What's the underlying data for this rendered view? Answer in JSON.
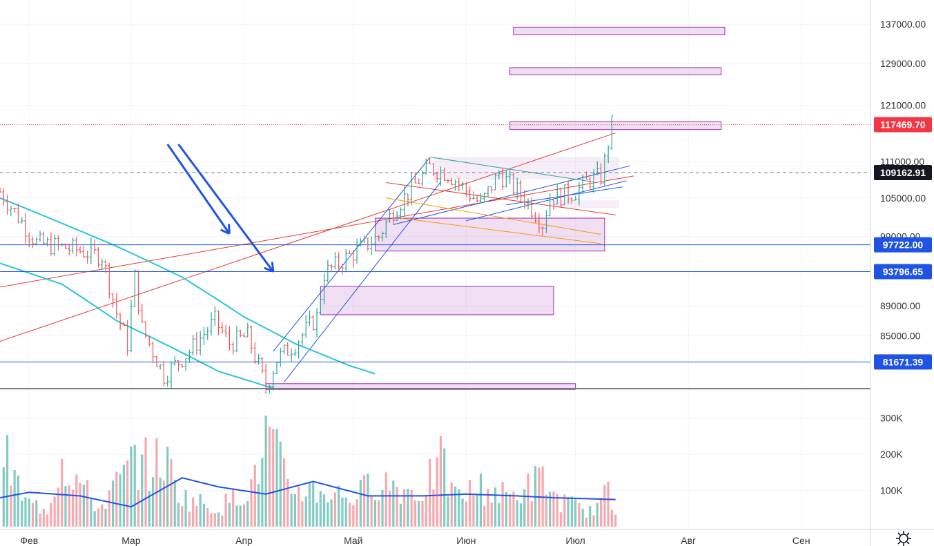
{
  "chart_data": [
    {
      "type": "candlestick",
      "subtype": "ohlc-bars",
      "yaxis": {
        "tick_labels": [
          "137000.00",
          "129000.00",
          "121000.00",
          "111000.00",
          "105000.00",
          "99000.00",
          "89000.00",
          "85000.00"
        ],
        "tick_values": [
          137000,
          129000,
          121000,
          111000,
          105000,
          99000,
          89000,
          85000
        ],
        "scale": "log",
        "range": [
          78400,
          141000
        ],
        "position": "right"
      },
      "xaxis": {
        "tick_labels": [
          "Фев",
          "Мар",
          "Апр",
          "Май",
          "Июн",
          "Июл",
          "Авг",
          "Сен"
        ],
        "tick_dates": [
          "2025-02-01",
          "2025-03-01",
          "2025-04-01",
          "2025-05-01",
          "2025-06-01",
          "2025-07-01",
          "2025-08-01",
          "2025-09-01"
        ],
        "range": [
          "2025-01-24",
          "2025-09-20"
        ]
      },
      "price_tags": [
        {
          "label": "117469.70",
          "value": 117469.7,
          "color": "#f23645",
          "line": "dotted"
        },
        {
          "label": "109162.91",
          "value": 109162.91,
          "color": "#131722",
          "line": "dashed"
        },
        {
          "label": "97722.00",
          "value": 97722,
          "color": "#1e53e5",
          "line": "solid"
        },
        {
          "label": "93796.65",
          "value": 93796.65,
          "color": "#1e53e5",
          "line": "solid"
        },
        {
          "label": "81671.39",
          "value": 81671.39,
          "color": "#1e53e5",
          "line": "solid"
        }
      ],
      "zones": [
        {
          "from": "2025-06-14",
          "to": "2025-08-11",
          "low": 134800,
          "high": 136400
        },
        {
          "from": "2025-06-13",
          "to": "2025-08-10",
          "low": 126800,
          "high": 128200
        },
        {
          "from": "2025-06-13",
          "to": "2025-08-10",
          "low": 116600,
          "high": 118000
        },
        {
          "from": "2025-05-07",
          "to": "2025-07-09",
          "low": 96800,
          "high": 101800
        },
        {
          "from": "2025-04-22",
          "to": "2025-06-25",
          "low": 87800,
          "high": 91700
        },
        {
          "from": "2025-04-07",
          "to": "2025-07-01",
          "low": 78300,
          "high": 79000
        }
      ],
      "series": [
        {
          "name": "",
          "up_color": "#26a69a",
          "down_color": "#ef5350",
          "anchors": [
            [
              "2025-01-24",
              106000
            ],
            [
              "2025-02-03",
              98000
            ],
            [
              "2025-02-14",
              97000
            ],
            [
              "2025-02-21",
              96000
            ],
            [
              "2025-02-25",
              88000
            ],
            [
              "2025-02-28",
              84000
            ],
            [
              "2025-03-02",
              93000
            ],
            [
              "2025-03-04",
              86000
            ],
            [
              "2025-03-10",
              80000
            ],
            [
              "2025-03-17",
              83000
            ],
            [
              "2025-03-24",
              87000
            ],
            [
              "2025-03-28",
              84000
            ],
            [
              "2025-04-02",
              85000
            ],
            [
              "2025-04-07",
              78500
            ],
            [
              "2025-04-10",
              82000
            ],
            [
              "2025-04-15",
              84000
            ],
            [
              "2025-04-21",
              87500
            ],
            [
              "2025-04-23",
              93500
            ],
            [
              "2025-05-01",
              96500
            ],
            [
              "2025-05-08",
              99000
            ],
            [
              "2025-05-12",
              103000
            ],
            [
              "2025-05-22",
              110000
            ],
            [
              "2025-05-27",
              109000
            ],
            [
              "2025-06-05",
              104000
            ],
            [
              "2025-06-10",
              109000
            ],
            [
              "2025-06-17",
              105000
            ],
            [
              "2025-06-22",
              101000
            ],
            [
              "2025-06-24",
              105000
            ],
            [
              "2025-07-01",
              106000
            ],
            [
              "2025-07-05",
              108000
            ],
            [
              "2025-07-08",
              108500
            ],
            [
              "2025-07-09",
              111000
            ],
            [
              "2025-07-11",
              117500
            ]
          ]
        }
      ],
      "overlays": [
        {
          "kind": "moving-average",
          "color": "#26c6da"
        },
        {
          "kind": "moving-average",
          "color": "#26c6da"
        },
        {
          "kind": "trendline",
          "color": "#e53935"
        },
        {
          "kind": "channel",
          "color": "#1e53e5"
        },
        {
          "kind": "trendline",
          "color": "#ff9800"
        },
        {
          "kind": "arrow",
          "color": "#1e53e5"
        }
      ]
    },
    {
      "type": "bar",
      "subtype": "volume",
      "yaxis": {
        "tick_labels": [
          "300K",
          "200K",
          "100K"
        ],
        "tick_values": [
          300000,
          200000,
          100000
        ],
        "range": [
          0,
          330000
        ]
      },
      "series": [
        {
          "name": "",
          "up_color": "#80cbc4",
          "down_color": "#f7a8ad",
          "anchors": [
            [
              "2025-01-25",
              240000
            ],
            [
              "2025-01-31",
              80000
            ],
            [
              "2025-02-06",
              60000
            ],
            [
              "2025-02-10",
              230000
            ],
            [
              "2025-02-20",
              60000
            ],
            [
              "2025-03-01",
              200000
            ],
            [
              "2025-03-02",
              230000
            ],
            [
              "2025-03-06",
              200000
            ],
            [
              "2025-03-10",
              230000
            ],
            [
              "2025-03-15",
              100000
            ],
            [
              "2025-03-25",
              60000
            ],
            [
              "2025-04-04",
              150000
            ],
            [
              "2025-04-07",
              300000
            ],
            [
              "2025-04-09",
              270000
            ],
            [
              "2025-04-13",
              130000
            ],
            [
              "2025-04-21",
              120000
            ],
            [
              "2025-05-02",
              100000
            ],
            [
              "2025-05-07",
              160000
            ],
            [
              "2025-05-19",
              110000
            ],
            [
              "2025-05-25",
              210000
            ],
            [
              "2025-05-29",
              100000
            ],
            [
              "2025-06-05",
              130000
            ],
            [
              "2025-06-13",
              100000
            ],
            [
              "2025-06-22",
              160000
            ],
            [
              "2025-06-26",
              90000
            ],
            [
              "2025-07-05",
              50000
            ],
            [
              "2025-07-10",
              110000
            ],
            [
              "2025-07-12",
              40000
            ]
          ]
        }
      ],
      "moving_average": {
        "color": "#1e53e5",
        "anchors": [
          [
            "2025-01-24",
            80000
          ],
          [
            "2025-02-01",
            95000
          ],
          [
            "2025-02-15",
            85000
          ],
          [
            "2025-03-01",
            55000
          ],
          [
            "2025-03-15",
            135000
          ],
          [
            "2025-03-25",
            110000
          ],
          [
            "2025-04-07",
            90000
          ],
          [
            "2025-04-20",
            125000
          ],
          [
            "2025-05-05",
            85000
          ],
          [
            "2025-05-20",
            85000
          ],
          [
            "2025-06-01",
            90000
          ],
          [
            "2025-06-15",
            85000
          ],
          [
            "2025-06-25",
            80000
          ],
          [
            "2025-07-12",
            75000
          ]
        ]
      }
    }
  ]
}
